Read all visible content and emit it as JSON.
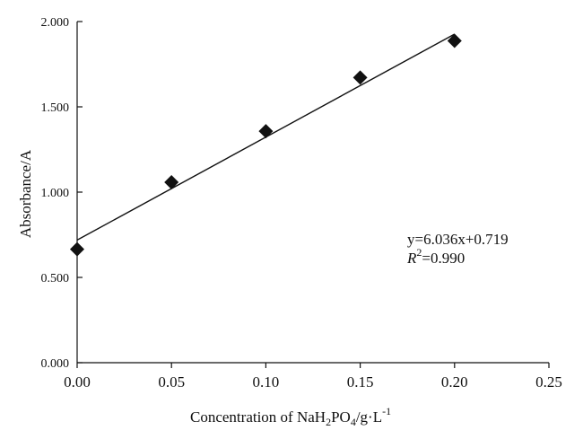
{
  "chart_data": {
    "type": "scatter",
    "xlabel": {
      "prefix": "Concentration of NaH",
      "sub1": "2",
      "mid": "PO",
      "sub2": "4",
      "suffix": "/g·L",
      "sup": "-1"
    },
    "ylabel": "Absorbance/A",
    "xlim": [
      0,
      0.25
    ],
    "ylim": [
      0,
      2.0
    ],
    "xticks": [
      {
        "value": 0.0,
        "label": "0.00"
      },
      {
        "value": 0.05,
        "label": "0.05"
      },
      {
        "value": 0.1,
        "label": "0.10"
      },
      {
        "value": 0.15,
        "label": "0.15"
      },
      {
        "value": 0.2,
        "label": "0.20"
      },
      {
        "value": 0.25,
        "label": "0.25"
      }
    ],
    "yticks": [
      {
        "value": 0.0,
        "label": "0.000"
      },
      {
        "value": 0.5,
        "label": "0.500"
      },
      {
        "value": 1.0,
        "label": "1.000"
      },
      {
        "value": 1.5,
        "label": "1.500"
      },
      {
        "value": 2.0,
        "label": "2.000"
      }
    ],
    "series": [
      {
        "marker": "diamond",
        "color": "#111111",
        "x": [
          0.0,
          0.05,
          0.1,
          0.15,
          0.2
        ],
        "y": [
          0.665,
          1.058,
          1.357,
          1.672,
          1.887
        ]
      }
    ],
    "fit": {
      "slope": 6.036,
      "intercept": 0.719,
      "x_range": [
        0.0,
        0.2
      ],
      "equation": "y=6.036x+0.719",
      "r2_symbol": "R",
      "r2_sup": "2",
      "r2_value": "=0.990"
    },
    "grid": false,
    "legend": "none"
  }
}
